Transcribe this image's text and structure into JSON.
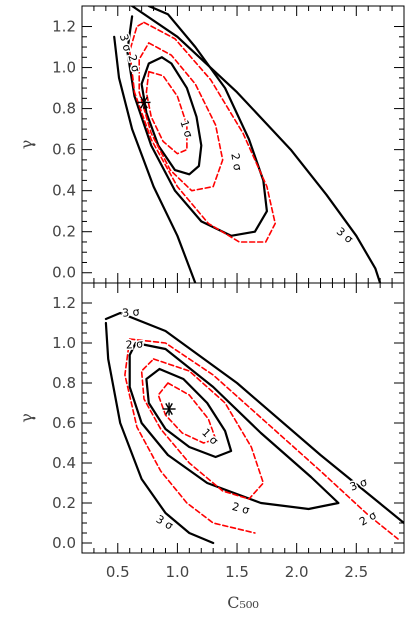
{
  "chart_data": [
    {
      "type": "contour",
      "panel": "top",
      "xlim": [
        0.2,
        2.9
      ],
      "ylim": [
        -0.05,
        1.3
      ],
      "ylabel": "γ",
      "xlabel": "",
      "y_ticks": [
        "0.0",
        "0.2",
        "0.4",
        "0.6",
        "0.8",
        "1.0",
        "1.2"
      ],
      "y_tick_values": [
        0.0,
        0.2,
        0.4,
        0.6,
        0.8,
        1.0,
        1.2
      ],
      "x_ticks": [],
      "x_tick_values": [
        0.5,
        1.0,
        1.5,
        2.0,
        2.5
      ],
      "best_fit": {
        "x": 0.72,
        "y": 0.83
      },
      "contours": [
        {
          "style": "solid",
          "color": "#000000",
          "level": "1 σ",
          "points": [
            [
              0.87,
              1.05
            ],
            [
              0.95,
              1.02
            ],
            [
              1.08,
              0.9
            ],
            [
              1.16,
              0.76
            ],
            [
              1.2,
              0.62
            ],
            [
              1.18,
              0.52
            ],
            [
              1.1,
              0.48
            ],
            [
              0.98,
              0.5
            ],
            [
              0.84,
              0.62
            ],
            [
              0.74,
              0.78
            ],
            [
              0.7,
              0.92
            ],
            [
              0.76,
              1.02
            ],
            [
              0.87,
              1.05
            ]
          ]
        },
        {
          "style": "solid",
          "color": "#000000",
          "level": "2 σ",
          "points": [
            [
              0.76,
              1.3
            ],
            [
              0.92,
              1.26
            ],
            [
              1.15,
              1.1
            ],
            [
              1.4,
              0.9
            ],
            [
              1.6,
              0.65
            ],
            [
              1.72,
              0.45
            ],
            [
              1.75,
              0.3
            ],
            [
              1.65,
              0.2
            ],
            [
              1.45,
              0.18
            ],
            [
              1.2,
              0.25
            ],
            [
              0.98,
              0.4
            ],
            [
              0.78,
              0.62
            ],
            [
              0.64,
              0.86
            ],
            [
              0.58,
              1.08
            ],
            [
              0.62,
              1.25
            ]
          ]
        },
        {
          "style": "solid",
          "color": "#000000",
          "level": "",
          "points": [
            [
              0.47,
              1.15
            ],
            [
              0.51,
              0.95
            ],
            [
              0.62,
              0.7
            ],
            [
              0.8,
              0.42
            ],
            [
              1.0,
              0.18
            ],
            [
              1.15,
              -0.05
            ]
          ]
        },
        {
          "style": "solid",
          "color": "#000000",
          "level": "3 σ",
          "points": [
            [
              0.62,
              1.3
            ],
            [
              1.0,
              1.15
            ],
            [
              1.5,
              0.88
            ],
            [
              1.95,
              0.6
            ],
            [
              2.25,
              0.38
            ],
            [
              2.5,
              0.18
            ],
            [
              2.66,
              0.02
            ],
            [
              2.7,
              -0.05
            ]
          ]
        },
        {
          "style": "dashed",
          "color": "#ff0000",
          "level": "",
          "points": [
            [
              0.76,
              0.98
            ],
            [
              0.88,
              0.96
            ],
            [
              1.0,
              0.86
            ],
            [
              1.08,
              0.72
            ],
            [
              1.08,
              0.6
            ],
            [
              1.0,
              0.58
            ],
            [
              0.88,
              0.64
            ],
            [
              0.78,
              0.76
            ],
            [
              0.74,
              0.88
            ],
            [
              0.76,
              0.98
            ]
          ]
        },
        {
          "style": "dashed",
          "color": "#ff0000",
          "level": "",
          "points": [
            [
              0.76,
              1.12
            ],
            [
              0.95,
              1.06
            ],
            [
              1.15,
              0.92
            ],
            [
              1.32,
              0.72
            ],
            [
              1.38,
              0.55
            ],
            [
              1.3,
              0.42
            ],
            [
              1.12,
              0.4
            ],
            [
              0.94,
              0.5
            ],
            [
              0.78,
              0.68
            ],
            [
              0.68,
              0.88
            ],
            [
              0.68,
              1.04
            ],
            [
              0.76,
              1.12
            ]
          ]
        },
        {
          "style": "dashed",
          "color": "#ff0000",
          "level": "",
          "points": [
            [
              0.72,
              1.22
            ],
            [
              0.98,
              1.14
            ],
            [
              1.28,
              0.94
            ],
            [
              1.55,
              0.68
            ],
            [
              1.75,
              0.42
            ],
            [
              1.82,
              0.24
            ],
            [
              1.74,
              0.15
            ],
            [
              1.52,
              0.15
            ],
            [
              1.26,
              0.24
            ],
            [
              1.0,
              0.42
            ],
            [
              0.78,
              0.65
            ],
            [
              0.64,
              0.88
            ],
            [
              0.6,
              1.08
            ],
            [
              0.66,
              1.2
            ],
            [
              0.72,
              1.22
            ]
          ]
        }
      ],
      "labels": [
        {
          "text": "1 σ",
          "x": 1.07,
          "y": 0.7,
          "rotate": 72
        },
        {
          "text": "2 σ",
          "x": 1.49,
          "y": 0.54,
          "rotate": 80
        },
        {
          "text": "3 σ",
          "x": 2.4,
          "y": 0.18,
          "rotate": 40
        },
        {
          "text": "3 σ",
          "x": 0.56,
          "y": 1.12,
          "rotate": 75
        },
        {
          "text": "2 σ",
          "x": 0.63,
          "y": 1.02,
          "rotate": 75
        }
      ]
    },
    {
      "type": "contour",
      "panel": "bottom",
      "xlim": [
        0.2,
        2.9
      ],
      "ylim": [
        -0.05,
        1.3
      ],
      "ylabel": "γ",
      "xlabel": "C₅₀₀",
      "y_ticks": [
        "0.0",
        "0.2",
        "0.4",
        "0.6",
        "0.8",
        "1.0",
        "1.2"
      ],
      "y_tick_values": [
        0.0,
        0.2,
        0.4,
        0.6,
        0.8,
        1.0,
        1.2
      ],
      "x_ticks": [
        "0.5",
        "1.0",
        "1.5",
        "2.0",
        "2.5"
      ],
      "x_tick_values": [
        0.5,
        1.0,
        1.5,
        2.0,
        2.5
      ],
      "best_fit": {
        "x": 0.93,
        "y": 0.67
      },
      "contours": [
        {
          "style": "solid",
          "color": "#000000",
          "level": "1 σ",
          "points": [
            [
              0.85,
              0.87
            ],
            [
              1.05,
              0.82
            ],
            [
              1.25,
              0.7
            ],
            [
              1.4,
              0.56
            ],
            [
              1.45,
              0.46
            ],
            [
              1.32,
              0.43
            ],
            [
              1.1,
              0.48
            ],
            [
              0.9,
              0.57
            ],
            [
              0.76,
              0.7
            ],
            [
              0.74,
              0.82
            ],
            [
              0.85,
              0.87
            ]
          ]
        },
        {
          "style": "solid",
          "color": "#000000",
          "level": "2 σ",
          "points": [
            [
              0.65,
              1.0
            ],
            [
              0.9,
              0.97
            ],
            [
              1.3,
              0.78
            ],
            [
              1.7,
              0.55
            ],
            [
              2.12,
              0.33
            ],
            [
              2.35,
              0.2
            ],
            [
              2.1,
              0.17
            ],
            [
              1.7,
              0.2
            ],
            [
              1.25,
              0.3
            ],
            [
              0.92,
              0.44
            ],
            [
              0.7,
              0.6
            ],
            [
              0.6,
              0.78
            ],
            [
              0.6,
              0.94
            ],
            [
              0.65,
              1.0
            ]
          ]
        },
        {
          "style": "solid",
          "color": "#000000",
          "level": "3 σ",
          "points": [
            [
              0.4,
              1.12
            ],
            [
              0.52,
              1.15
            ],
            [
              0.9,
              1.06
            ],
            [
              1.5,
              0.8
            ],
            [
              2.2,
              0.44
            ],
            [
              2.9,
              0.1
            ]
          ]
        },
        {
          "style": "solid",
          "color": "#000000",
          "level": "",
          "points": [
            [
              0.4,
              1.1
            ],
            [
              0.42,
              0.92
            ],
            [
              0.52,
              0.6
            ],
            [
              0.7,
              0.32
            ],
            [
              0.9,
              0.15
            ],
            [
              1.1,
              0.05
            ],
            [
              1.3,
              0.0
            ]
          ]
        },
        {
          "style": "dashed",
          "color": "#ff0000",
          "level": "",
          "points": [
            [
              0.92,
              0.8
            ],
            [
              1.1,
              0.74
            ],
            [
              1.26,
              0.62
            ],
            [
              1.32,
              0.52
            ],
            [
              1.22,
              0.5
            ],
            [
              1.04,
              0.55
            ],
            [
              0.9,
              0.64
            ],
            [
              0.84,
              0.74
            ],
            [
              0.92,
              0.8
            ]
          ]
        },
        {
          "style": "dashed",
          "color": "#ff0000",
          "level": "",
          "points": [
            [
              0.8,
              0.92
            ],
            [
              1.1,
              0.86
            ],
            [
              1.4,
              0.7
            ],
            [
              1.62,
              0.48
            ],
            [
              1.72,
              0.3
            ],
            [
              1.6,
              0.22
            ],
            [
              1.38,
              0.26
            ],
            [
              1.1,
              0.4
            ],
            [
              0.86,
              0.57
            ],
            [
              0.72,
              0.72
            ],
            [
              0.7,
              0.86
            ],
            [
              0.8,
              0.92
            ]
          ]
        },
        {
          "style": "dashed",
          "color": "#ff0000",
          "level": "",
          "points": [
            [
              0.6,
              1.02
            ],
            [
              0.9,
              1.0
            ],
            [
              1.3,
              0.84
            ],
            [
              1.75,
              0.6
            ],
            [
              2.2,
              0.36
            ],
            [
              2.6,
              0.14
            ],
            [
              2.85,
              0.02
            ]
          ]
        },
        {
          "style": "dashed",
          "color": "#ff0000",
          "level": "",
          "points": [
            [
              0.6,
              1.02
            ],
            [
              0.56,
              0.84
            ],
            [
              0.66,
              0.58
            ],
            [
              0.86,
              0.36
            ],
            [
              1.08,
              0.2
            ],
            [
              1.3,
              0.1
            ],
            [
              1.65,
              0.05
            ]
          ]
        }
      ],
      "labels": [
        {
          "text": "1 σ",
          "x": 1.27,
          "y": 0.53,
          "rotate": 45
        },
        {
          "text": "2 σ",
          "x": 1.53,
          "y": 0.17,
          "rotate": 15
        },
        {
          "text": "2 σ",
          "x": 2.6,
          "y": 0.12,
          "rotate": -30
        },
        {
          "text": "3 σ",
          "x": 2.52,
          "y": 0.29,
          "rotate": -20
        },
        {
          "text": "3 σ",
          "x": 0.89,
          "y": 0.1,
          "rotate": 30
        },
        {
          "text": "3 σ",
          "x": 0.61,
          "y": 1.15,
          "rotate": -5
        },
        {
          "text": "2 σ",
          "x": 0.64,
          "y": 0.99,
          "rotate": -5
        }
      ]
    }
  ]
}
